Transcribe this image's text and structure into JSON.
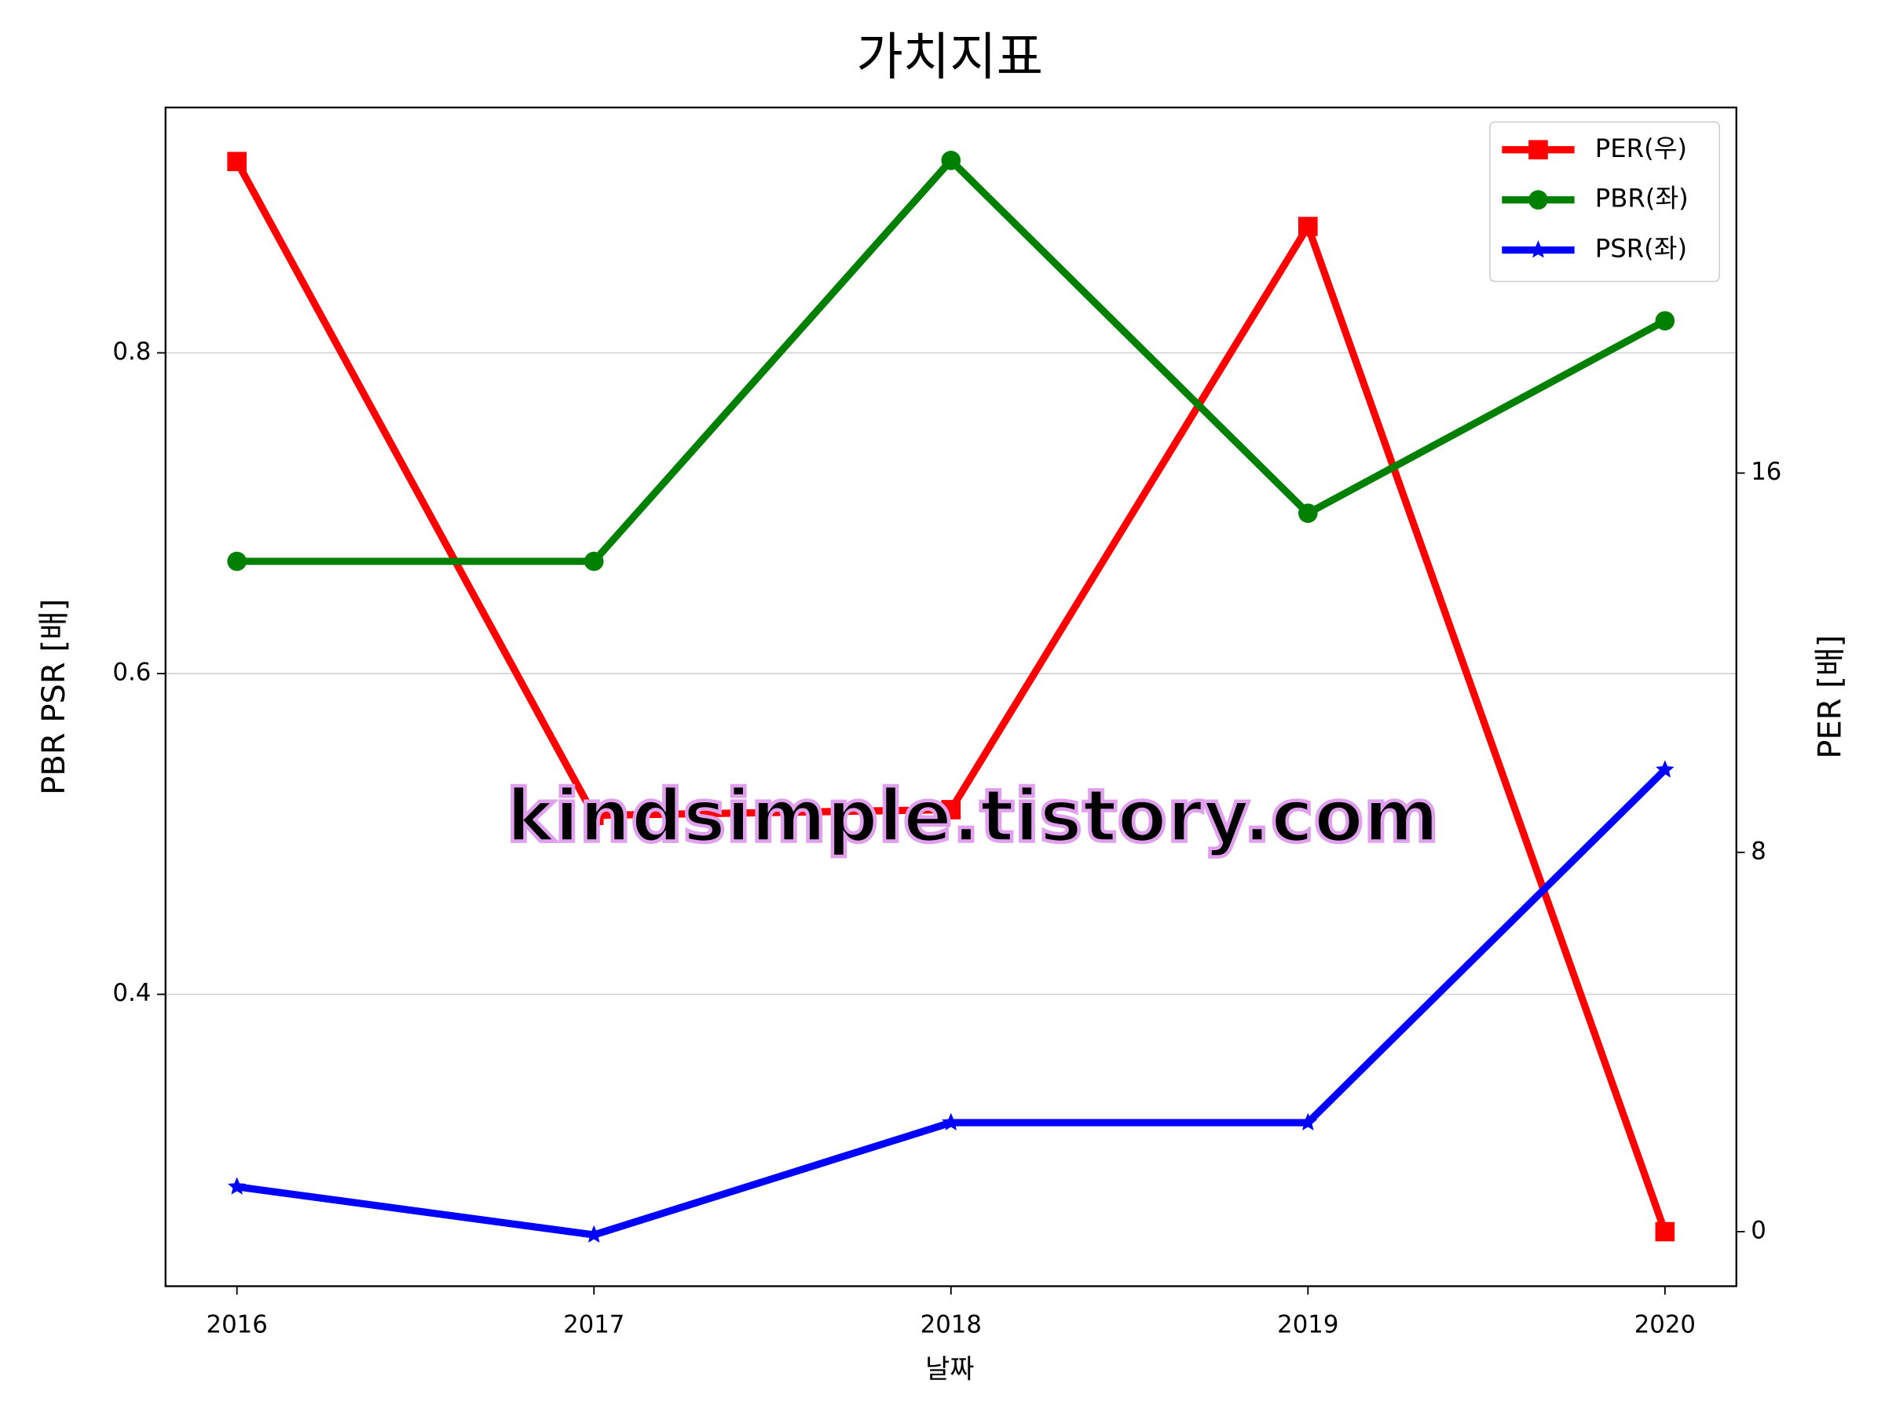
{
  "chart_data": {
    "type": "line",
    "title": "가치지표",
    "xlabel": "날짜",
    "ylabel": "PBR PSR [배]",
    "y2label": "PER [배]",
    "ylabel_color": "#008000",
    "y2label_color": "#ff0000",
    "annotation": "kindsimple.tistory.com",
    "x": [
      2016,
      2017,
      2018,
      2019,
      2020
    ],
    "xlim": [
      2015.8,
      2020.2
    ],
    "xticks": [
      2016,
      2017,
      2018,
      2019,
      2020
    ],
    "ylim": [
      0.218,
      0.953
    ],
    "yticks": [
      0.4,
      0.6,
      0.8
    ],
    "y2lim": [
      -1.15,
      23.71
    ],
    "y2ticks": [
      0,
      8,
      16
    ],
    "grid": true,
    "legend": "upper right",
    "series": [
      {
        "name": "PER(우)",
        "color": "#ff0000",
        "marker": "square",
        "axis": "y2",
        "values": [
          22.57,
          8.78,
          8.9,
          21.2,
          0
        ]
      },
      {
        "name": "PBR(좌)",
        "color": "#008000",
        "marker": "circle",
        "values": [
          0.67,
          0.67,
          0.92,
          0.7,
          0.82
        ]
      },
      {
        "name": "PSR(좌)",
        "color": "#0000ff",
        "marker": "star",
        "values": [
          0.28,
          0.25,
          0.32,
          0.32,
          0.54
        ]
      }
    ]
  }
}
